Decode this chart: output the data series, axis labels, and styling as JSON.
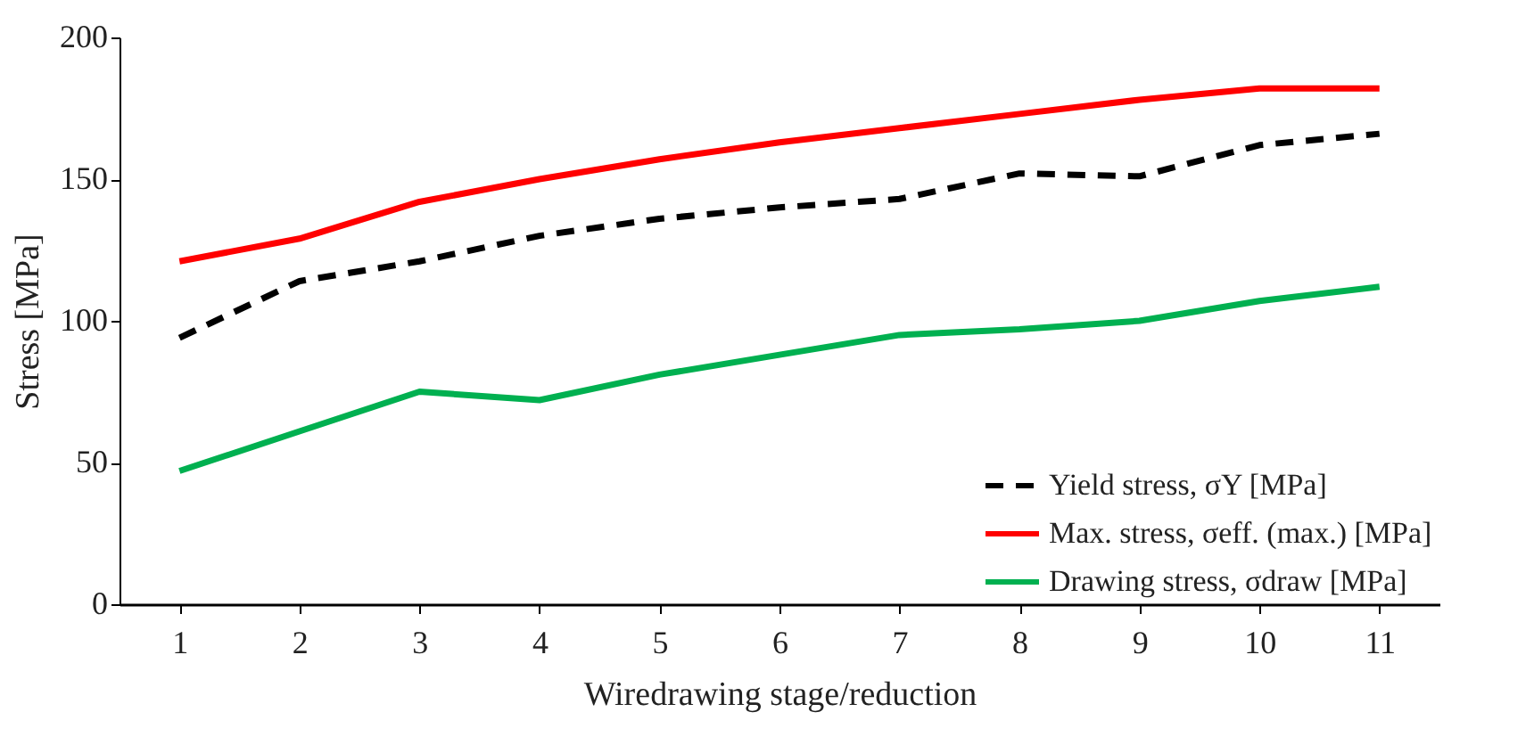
{
  "chart_data": {
    "type": "line",
    "xlabel": "Wiredrawing stage/reduction",
    "ylabel": "Stress [MPa]",
    "categories": [
      "1",
      "2",
      "3",
      "4",
      "5",
      "6",
      "7",
      "8",
      "9",
      "10",
      "11"
    ],
    "ylim": [
      0,
      200
    ],
    "yticks": [
      0,
      50,
      100,
      150,
      200
    ],
    "grid": false,
    "legend": "bottom right",
    "series": [
      {
        "name": "Yield stress, σY [MPa]",
        "color": "#000000",
        "line_style": "dashed",
        "values": [
          94,
          114,
          121,
          130,
          136,
          140,
          143,
          152,
          151,
          162,
          166
        ]
      },
      {
        "name": "Max. stress, σeff. (max.) [MPa]",
        "color": "#ff0000",
        "line_style": "solid",
        "values": [
          121,
          129,
          142,
          150,
          157,
          163,
          168,
          173,
          178,
          182,
          182
        ]
      },
      {
        "name": "Drawing stress, σdraw [MPa]",
        "color": "#00b050",
        "line_style": "solid",
        "values": [
          47,
          61,
          75,
          72,
          81,
          88,
          95,
          97,
          100,
          107,
          112
        ]
      }
    ]
  }
}
